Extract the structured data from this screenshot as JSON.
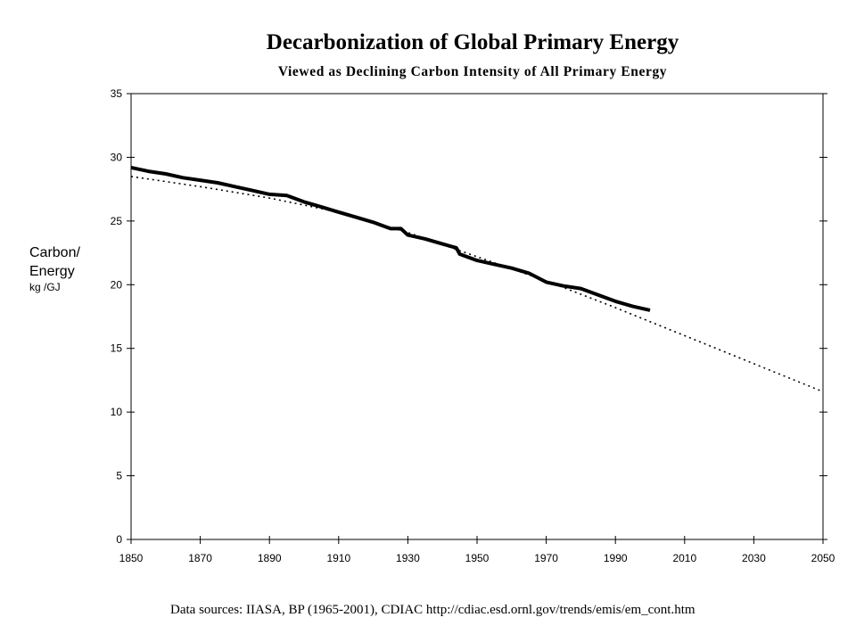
{
  "chart_data": {
    "type": "line",
    "title": "Decarbonization  of Global Primary Energy",
    "subtitle": "Viewed as Declining Carbon Intensity of All Primary Energy",
    "ylabel": {
      "line1": "Carbon/",
      "line2": "Energy",
      "unit": "kg /GJ"
    },
    "xlim": [
      1850,
      2050
    ],
    "ylim": [
      0,
      35
    ],
    "x_ticks": [
      1850,
      1870,
      1890,
      1910,
      1930,
      1950,
      1970,
      1990,
      2010,
      2030,
      2050
    ],
    "y_ticks": [
      0,
      5,
      10,
      15,
      20,
      25,
      30,
      35
    ],
    "grid": false,
    "series": [
      {
        "style": "solid-thick",
        "x": [
          1850,
          1855,
          1860,
          1865,
          1870,
          1875,
          1880,
          1885,
          1890,
          1895,
          1900,
          1905,
          1910,
          1915,
          1920,
          1925,
          1928,
          1930,
          1935,
          1940,
          1944,
          1945,
          1950,
          1955,
          1960,
          1965,
          1970,
          1975,
          1980,
          1985,
          1990,
          1995,
          2000
        ],
        "values": [
          29.2,
          28.9,
          28.7,
          28.4,
          28.2,
          28.0,
          27.7,
          27.4,
          27.1,
          27.0,
          26.5,
          26.1,
          25.7,
          25.3,
          24.9,
          24.4,
          24.4,
          23.9,
          23.6,
          23.2,
          22.9,
          22.4,
          21.9,
          21.6,
          21.3,
          20.9,
          20.2,
          19.9,
          19.7,
          19.2,
          18.7,
          18.3,
          18.0
        ]
      },
      {
        "style": "dotted-trend",
        "x": [
          1850,
          1870,
          1890,
          1910,
          1930,
          1950,
          1970,
          1990,
          2010,
          2030,
          2050
        ],
        "values": [
          28.5,
          27.7,
          26.8,
          25.7,
          24.1,
          22.2,
          20.3,
          18.2,
          16.0,
          13.8,
          11.6
        ]
      }
    ]
  },
  "footer": {
    "source": "Data sources: IIASA, BP (1965-2001), CDIAC http://cdiac.esd.ornl.gov/trends/emis/em_cont.htm"
  }
}
